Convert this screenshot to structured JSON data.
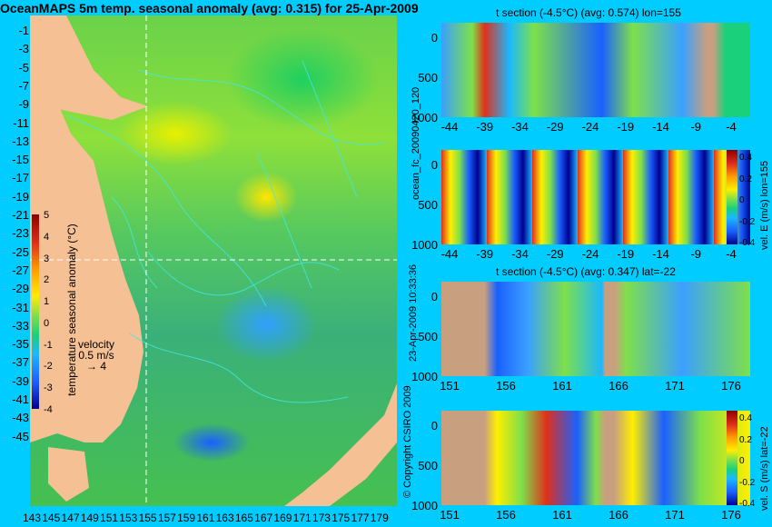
{
  "title": "OceanMAPS 5m temp. seasonal anomaly (avg: 0.315) for 25-Apr-2009",
  "map": {
    "lat_labels": [
      "-1",
      "-3",
      "-5",
      "-7",
      "-9",
      "-11",
      "-13",
      "-15",
      "-17",
      "-19",
      "-21",
      "-23",
      "-25",
      "-27",
      "-29",
      "-31",
      "-33",
      "-35",
      "-37",
      "-39",
      "-41",
      "-43",
      "-45"
    ],
    "lon_labels": [
      "143",
      "145",
      "147",
      "149",
      "151",
      "153",
      "155",
      "157",
      "159",
      "161",
      "163",
      "165",
      "167",
      "169",
      "171",
      "173",
      "175",
      "177",
      "179"
    ],
    "colorbar": {
      "title": "temperature seasonal anomaly (°C)",
      "ticks": [
        "5",
        "4",
        "3",
        "2",
        "1",
        "0",
        "-1",
        "-2",
        "-3",
        "-4"
      ],
      "colors": [
        "#8b0000",
        "#e0301c",
        "#ff9a00",
        "#ffee00",
        "#7ee04a",
        "#1ad07a",
        "#1ab8ff",
        "#1a60ff",
        "#000090"
      ]
    },
    "velocity": {
      "label": "velocity",
      "value": "0.5 m/s",
      "arrow": "→",
      "scale": "4"
    }
  },
  "side_text": {
    "run_id": "ocean_fc_20090420_120",
    "timestamp": "23-Apr-2009 10:33:36",
    "copyright": "© Copyright CSIRO 2009"
  },
  "panels": [
    {
      "title": "t section (-4.5°C) (avg: 0.574) lon=155",
      "y_ticks": [
        "0",
        "500",
        "1000"
      ],
      "x_ticks": [
        "-44",
        "-39",
        "-34",
        "-29",
        "-24",
        "-19",
        "-14",
        "-9",
        "-4"
      ]
    },
    {
      "title": "",
      "y_ticks": [
        "0",
        "500",
        "1000"
      ],
      "x_ticks": [
        "-44",
        "-39",
        "-34",
        "-29",
        "-24",
        "-19",
        "-14",
        "-9",
        "-4"
      ],
      "colorbar_label": "vel. E (m/s) lon=155",
      "colorbar_ticks": [
        "0.4",
        "0.2",
        "0",
        "-0.2",
        "-0.4"
      ]
    },
    {
      "title": "t section (-4.5°C) (avg: 0.347) lat=-22",
      "y_ticks": [
        "0",
        "500",
        "1000"
      ],
      "x_ticks": [
        "151",
        "156",
        "161",
        "166",
        "171",
        "176"
      ]
    },
    {
      "title": "",
      "y_ticks": [
        "0",
        "500",
        "1000"
      ],
      "x_ticks": [
        "151",
        "156",
        "161",
        "166",
        "171",
        "176"
      ],
      "colorbar_label": "vel. S (m/s) lat=-22",
      "colorbar_ticks": [
        "0.4",
        "0.2",
        "0",
        "-0.2",
        "-0.4"
      ]
    }
  ]
}
